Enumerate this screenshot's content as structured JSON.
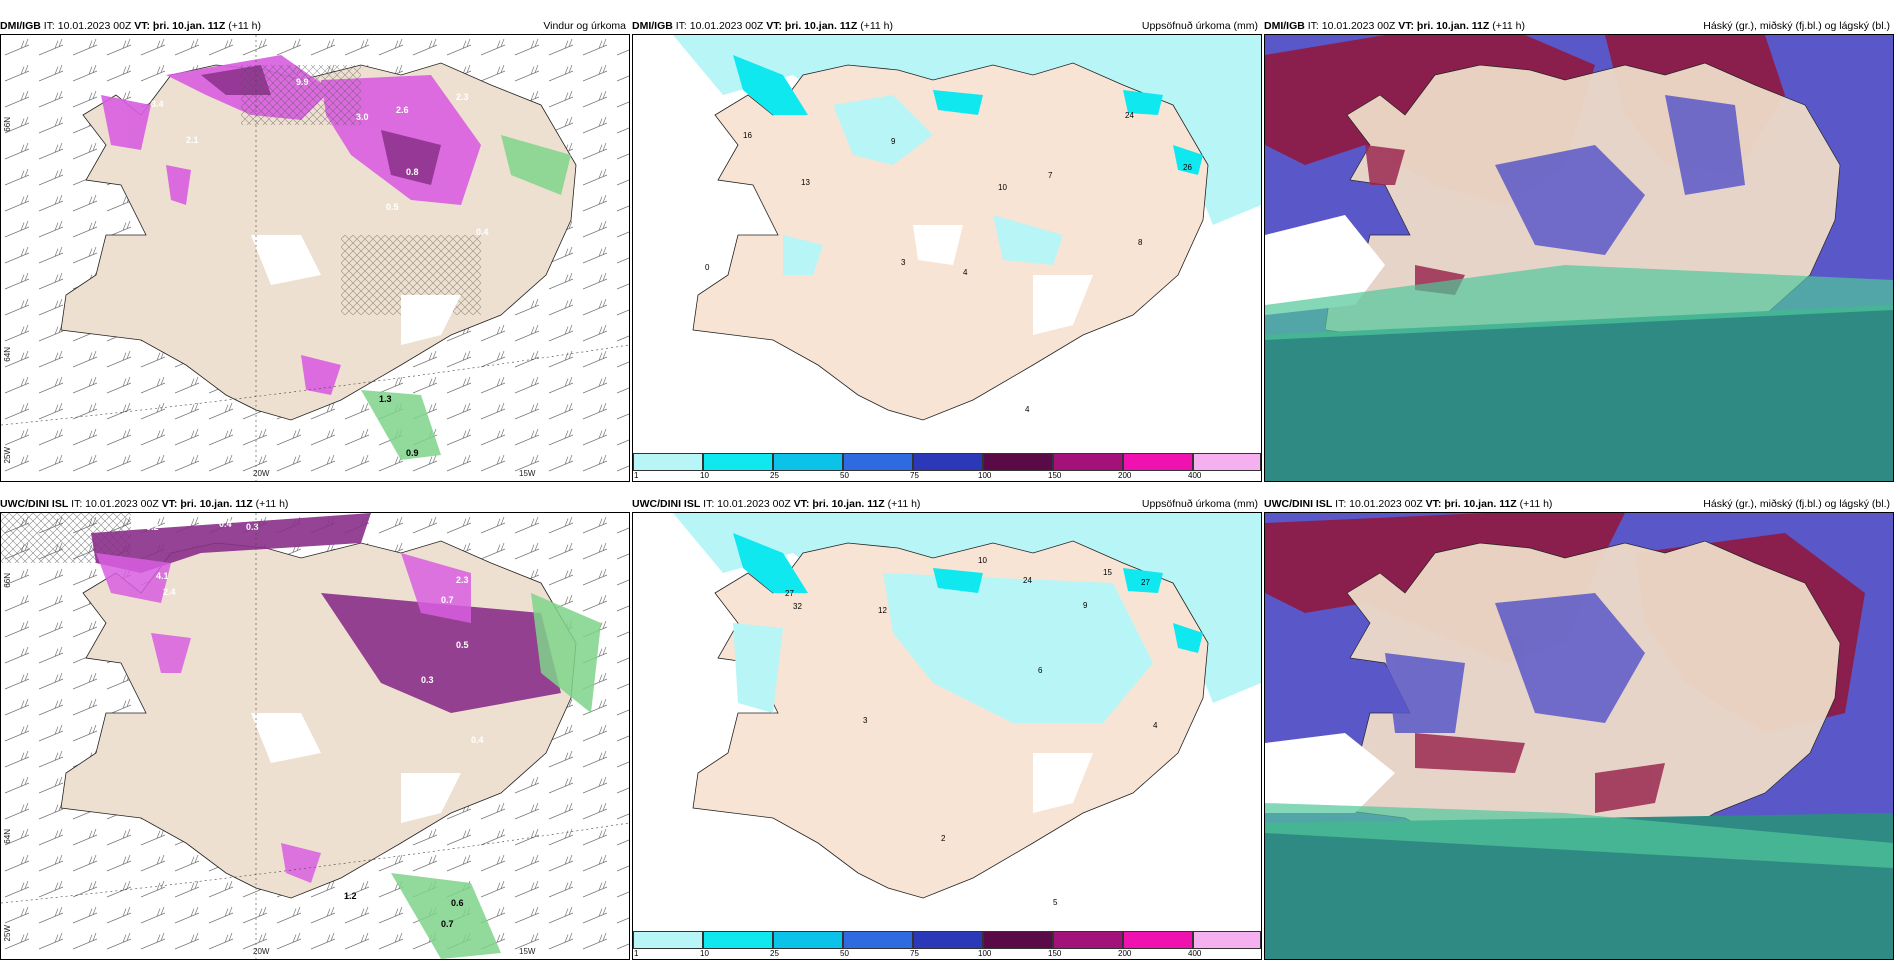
{
  "panels": [
    {
      "source": "DMI/IGB",
      "info": "IT: 10.01.2023 00Z",
      "vt": "VT: þri. 10.jan. 11Z",
      "lead": "(+11 h)",
      "title": "Vindur og úrkoma"
    },
    {
      "source": "DMI/IGB",
      "info": "IT: 10.01.2023 00Z",
      "vt": "VT: þri. 10.jan. 11Z",
      "lead": "(+11 h)",
      "title": "Uppsöfnuð úrkoma (mm)"
    },
    {
      "source": "DMI/IGB",
      "info": "IT: 10.01.2023 00Z",
      "vt": "VT: þri. 10.jan. 11Z",
      "lead": "(+11 h)",
      "title": "Háský (gr.), miðský (fj.bl.) og lágský (bl.)"
    },
    {
      "source": "UWC/DINI ISL",
      "info": "IT: 10.01.2023 00Z",
      "vt": "VT: þri. 10.jan. 11Z",
      "lead": "(+11 h)",
      "title": "Uppsöfnuð úrkoma (mm)"
    },
    {
      "source": "UWC/DINI ISL",
      "info": "IT: 10.01.2023 00Z",
      "vt": "VT: þri. 10.jan. 11Z",
      "lead": "(+11 h)",
      "title": "Uppsöfnuð úrkoma (mm)"
    },
    {
      "source": "UWC/DINI ISL",
      "info": "IT: 10.01.2023 00Z",
      "vt": "VT: þri. 10.jan. 11Z",
      "lead": "(+11 h)",
      "title": "Háský (gr.), miðský (fj.bl.) og lágský (bl.)"
    }
  ],
  "axes": {
    "lat_66": "66N",
    "lat_64": "64N",
    "lon_20": "20W",
    "lon_15": "15W",
    "lon_25": "25W"
  },
  "colorbar": {
    "ticks": [
      "1",
      "10",
      "25",
      "50",
      "75",
      "100",
      "150",
      "200",
      "400"
    ],
    "colors": [
      "#b7f5f7",
      "#10e8f0",
      "#0bc2e8",
      "#2f6be0",
      "#2b39b8",
      "#5b0a48",
      "#a3127a",
      "#f012b0",
      "#f5b0f0"
    ]
  },
  "map_labels": {
    "dmi_wind": [
      "3.4",
      "2.1",
      "9.9",
      "3.0",
      "2.6",
      "2.3",
      "0.8",
      "0.5",
      "0.4",
      "1.3",
      "0.9"
    ],
    "dmi_accum": [
      "16",
      "13",
      "9",
      "10",
      "7",
      "24",
      "26",
      "8",
      "4",
      "3",
      "0",
      "4"
    ],
    "uwc_wind": [
      "0.2",
      "0.4",
      "0.3",
      "4.1",
      "2.4",
      "2.3",
      "0.7",
      "0.5",
      "0.3",
      "0.4",
      "0.6",
      "0.7",
      "1.2"
    ],
    "uwc_accum": [
      "27",
      "32",
      "12",
      "10",
      "24",
      "27",
      "15",
      "9",
      "6",
      "3",
      "2",
      "4",
      "5"
    ]
  }
}
